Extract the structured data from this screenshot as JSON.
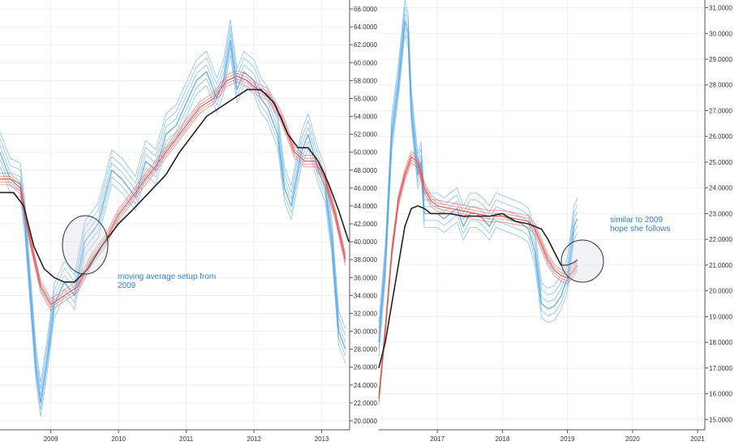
{
  "colors": {
    "background": "#ffffff",
    "grid": "#eef0f4",
    "axis": "#555555",
    "fast_ribbon": "#5aa9e6",
    "slow_ribbon": "#e05a5a",
    "long_ma": "#222222",
    "annotation": "#3a7fd5"
  },
  "chart_data": [
    {
      "type": "line",
      "panel": "left",
      "ylim": [
        19,
        67
      ],
      "y_ticks": [
        "20.0000",
        "22.0000",
        "24.0000",
        "26.0000",
        "28.0000",
        "30.0000",
        "32.0000",
        "34.0000",
        "36.0000",
        "38.0000",
        "40.0000",
        "42.0000",
        "44.0000",
        "46.0000",
        "48.0000",
        "50.0000",
        "52.0000",
        "54.0000",
        "56.0000",
        "58.0000",
        "60.0000",
        "62.0000",
        "64.0000",
        "66.0000"
      ],
      "x_ticks": [
        {
          "label": "2009",
          "x": 2009.0
        },
        {
          "label": "2010",
          "x": 2010.0
        },
        {
          "label": "2011",
          "x": 2011.0
        },
        {
          "label": "2012",
          "x": 2012.0
        },
        {
          "label": "2013",
          "x": 2013.0
        }
      ],
      "xlim": [
        2008.25,
        2013.4
      ],
      "series": [
        {
          "role": "fast",
          "x": [
            2008.25,
            2008.4,
            2008.55,
            2008.62,
            2008.7,
            2008.78,
            2008.85,
            2008.95,
            2009.05,
            2009.2,
            2009.35,
            2009.5,
            2009.7,
            2009.9,
            2010.05,
            2010.25,
            2010.4,
            2010.55,
            2010.7,
            2010.85,
            2011.0,
            2011.15,
            2011.3,
            2011.45,
            2011.55,
            2011.65,
            2011.75,
            2011.85,
            2012.0,
            2012.1,
            2012.2,
            2012.35,
            2012.45,
            2012.55,
            2012.7,
            2012.8,
            2012.95,
            2013.05,
            2013.15,
            2013.25,
            2013.35
          ],
          "y": [
            50.0,
            47.0,
            46.5,
            42.0,
            34.0,
            26.0,
            22.0,
            27.0,
            33.0,
            35.5,
            34.0,
            40.0,
            42.0,
            48.0,
            47.0,
            45.0,
            49.0,
            48.0,
            52.0,
            53.0,
            55.5,
            58.0,
            59.0,
            56.0,
            58.0,
            62.5,
            57.0,
            59.0,
            58.0,
            56.0,
            55.0,
            52.0,
            46.0,
            44.0,
            50.0,
            52.0,
            48.0,
            46.0,
            40.0,
            30.0,
            28.0
          ]
        },
        {
          "role": "slow",
          "x": [
            2008.25,
            2008.4,
            2008.55,
            2008.7,
            2008.85,
            2009.0,
            2009.2,
            2009.4,
            2009.6,
            2009.8,
            2010.0,
            2010.2,
            2010.4,
            2010.6,
            2010.8,
            2011.0,
            2011.2,
            2011.4,
            2011.6,
            2011.75,
            2011.9,
            2012.05,
            2012.2,
            2012.4,
            2012.6,
            2012.75,
            2012.9,
            2013.05,
            2013.2,
            2013.35
          ],
          "y": [
            47.0,
            47.0,
            46.0,
            40.0,
            35.0,
            33.0,
            34.0,
            35.0,
            38.0,
            40.0,
            43.0,
            45.0,
            47.0,
            49.0,
            51.0,
            53.0,
            55.0,
            56.0,
            58.0,
            58.5,
            58.0,
            57.0,
            56.5,
            54.0,
            50.0,
            49.0,
            49.0,
            47.0,
            43.0,
            38.0
          ]
        },
        {
          "role": "long",
          "x": [
            2008.25,
            2008.45,
            2008.6,
            2008.75,
            2008.9,
            2009.05,
            2009.2,
            2009.35,
            2009.55,
            2009.75,
            2010.0,
            2010.2,
            2010.45,
            2010.7,
            2010.9,
            2011.1,
            2011.3,
            2011.5,
            2011.7,
            2011.9,
            2012.1,
            2012.3,
            2012.5,
            2012.65,
            2012.8,
            2012.95,
            2013.1,
            2013.25,
            2013.4
          ],
          "y": [
            45.5,
            45.5,
            44.0,
            39.5,
            37.0,
            36.0,
            35.5,
            35.5,
            37.0,
            39.5,
            42.0,
            43.5,
            45.5,
            47.5,
            50.0,
            52.0,
            54.0,
            55.0,
            56.0,
            57.0,
            57.0,
            55.5,
            52.0,
            50.5,
            50.5,
            49.0,
            46.5,
            43.5,
            40.0
          ]
        }
      ],
      "annotations": [
        {
          "text_lines": [
            "moving average setup from",
            "2009"
          ]
        }
      ]
    },
    {
      "type": "line",
      "panel": "right",
      "ylim": [
        14.6,
        31.3
      ],
      "y_ticks": [
        "15.0000",
        "16.0000",
        "17.0000",
        "18.0000",
        "19.0000",
        "20.0000",
        "21.0000",
        "22.0000",
        "23.0000",
        "24.0000",
        "25.0000",
        "26.0000",
        "27.0000",
        "28.0000",
        "29.0000",
        "30.0000",
        "31.0000"
      ],
      "x_ticks": [
        {
          "label": "2017",
          "x": 2017.0
        },
        {
          "label": "2018",
          "x": 2018.0
        },
        {
          "label": "2019",
          "x": 2019.0
        },
        {
          "label": "2020",
          "x": 2020.0
        },
        {
          "label": "2021",
          "x": 2021.0
        }
      ],
      "xlim": [
        2016.1,
        2021.1
      ],
      "series": [
        {
          "role": "fast",
          "x": [
            2016.1,
            2016.2,
            2016.3,
            2016.4,
            2016.5,
            2016.55,
            2016.6,
            2016.7,
            2016.75,
            2016.8,
            2016.9,
            2017.0,
            2017.1,
            2017.2,
            2017.3,
            2017.4,
            2017.5,
            2017.6,
            2017.7,
            2017.8,
            2017.9,
            2018.0,
            2018.1,
            2018.2,
            2018.3,
            2018.4,
            2018.5,
            2018.6,
            2018.7,
            2018.8,
            2018.9,
            2019.0,
            2019.05,
            2019.1,
            2019.15
          ],
          "y": [
            18.0,
            21.0,
            26.0,
            28.0,
            30.5,
            30.0,
            27.0,
            24.5,
            25.0,
            23.0,
            23.0,
            23.0,
            22.8,
            23.0,
            23.2,
            22.5,
            23.0,
            23.0,
            22.8,
            22.5,
            23.0,
            22.9,
            22.8,
            22.7,
            22.6,
            22.4,
            21.5,
            19.5,
            19.3,
            19.4,
            19.8,
            20.5,
            21.5,
            22.5,
            22.8
          ]
        },
        {
          "role": "slow",
          "x": [
            2016.1,
            2016.2,
            2016.3,
            2016.4,
            2016.5,
            2016.6,
            2016.7,
            2016.8,
            2016.9,
            2017.0,
            2017.2,
            2017.4,
            2017.6,
            2017.8,
            2018.0,
            2018.2,
            2018.4,
            2018.5,
            2018.6,
            2018.7,
            2018.8,
            2018.9,
            2019.0,
            2019.1,
            2019.15
          ],
          "y": [
            15.8,
            18.5,
            21.5,
            23.5,
            24.5,
            25.2,
            25.0,
            24.0,
            23.5,
            23.3,
            23.2,
            23.1,
            23.0,
            22.9,
            22.9,
            22.8,
            22.7,
            22.4,
            21.8,
            21.2,
            20.8,
            20.6,
            20.5,
            20.8,
            21.0
          ]
        },
        {
          "role": "long",
          "x": [
            2016.1,
            2016.2,
            2016.3,
            2016.4,
            2016.5,
            2016.6,
            2016.7,
            2016.8,
            2016.9,
            2017.0,
            2017.2,
            2017.4,
            2017.6,
            2017.8,
            2018.0,
            2018.2,
            2018.4,
            2018.6,
            2018.7,
            2018.8,
            2018.9,
            2019.0,
            2019.1,
            2019.15
          ],
          "y": [
            17.0,
            18.0,
            19.5,
            21.0,
            22.5,
            23.2,
            23.3,
            23.2,
            23.0,
            23.0,
            23.0,
            22.9,
            22.9,
            22.9,
            23.0,
            22.7,
            22.6,
            22.4,
            22.0,
            21.5,
            21.0,
            21.0,
            21.1,
            21.2
          ]
        }
      ],
      "annotations": [
        {
          "text_lines": [
            "similar to 2009",
            "hope she follows"
          ]
        }
      ]
    }
  ]
}
